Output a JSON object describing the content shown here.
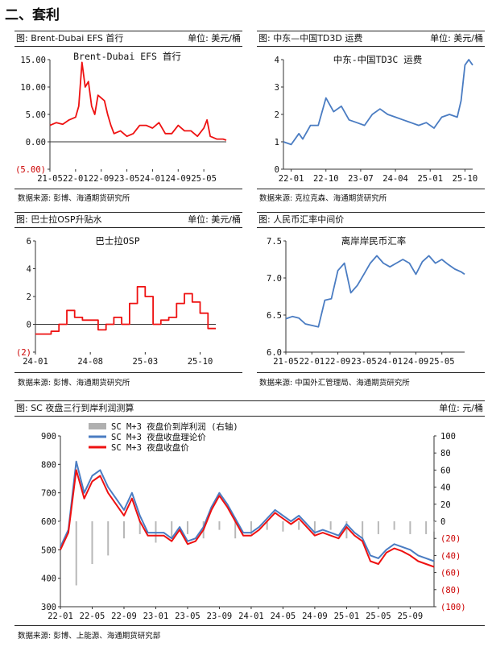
{
  "page": {
    "section_title": "二、套利"
  },
  "panels": {
    "p1": {
      "title": "图: Brent-Dubai EFS 首行",
      "unit": "单位: 美元/桶",
      "source": "数据来源: 彭博、海通期货研究所"
    },
    "p2": {
      "title": "图: 中东—中国TD3D 运费",
      "unit": "单位: 美元/桶",
      "source": "数据来源: 克拉克森、海通期货研究所"
    },
    "p3": {
      "title": "图: 巴士拉OSP升贴水",
      "unit": "单位: 美元/桶",
      "source": "数据来源: 彭博、海通期货研究所"
    },
    "p4": {
      "title": "图: 人民币汇率中间价",
      "unit": "",
      "source": "数据来源: 中国外汇管理局、海通期货研究所"
    },
    "p5": {
      "title": "图: SC 夜盘三行到岸利润测算",
      "unit": "单位: 元/桶",
      "source": "数据来源: 彭博、上能源、海通期货研究部"
    }
  },
  "chart_data": [
    {
      "id": "efs",
      "type": "line",
      "title": "Brent-Dubai EFS 首行",
      "ylim": [
        -5,
        15
      ],
      "yticks": [
        "15.00",
        "10.00",
        "5.00",
        "0.00",
        "(5.00)"
      ],
      "ytick_values": [
        15,
        10,
        5,
        0,
        -5
      ],
      "ytick_negative_color": "#cc0000",
      "xticks": [
        "21-05",
        "22-01",
        "22-09",
        "23-05",
        "24-01",
        "24-09",
        "25-05"
      ],
      "x_range": [
        "2021-05",
        "2025-12"
      ],
      "series": [
        {
          "color": "#ee1111",
          "x": [
            "2021-05",
            "2021-07",
            "2021-09",
            "2021-11",
            "2022-01",
            "2022-02",
            "2022-03",
            "2022-04",
            "2022-05",
            "2022-06",
            "2022-07",
            "2022-08",
            "2022-09",
            "2022-10",
            "2022-11",
            "2022-12",
            "2023-01",
            "2023-03",
            "2023-05",
            "2023-07",
            "2023-09",
            "2023-11",
            "2024-01",
            "2024-03",
            "2024-05",
            "2024-07",
            "2024-09",
            "2024-11",
            "2025-01",
            "2025-03",
            "2025-05",
            "2025-06",
            "2025-07",
            "2025-09",
            "2025-11",
            "2025-12"
          ],
          "values": [
            3.0,
            3.5,
            3.2,
            4.0,
            4.5,
            6.5,
            14.5,
            10.0,
            11.0,
            6.5,
            5.0,
            8.5,
            8.0,
            7.5,
            5.0,
            3.0,
            1.5,
            2.0,
            1.0,
            1.5,
            3.0,
            3.0,
            2.5,
            3.5,
            1.5,
            1.5,
            3.0,
            2.0,
            2.0,
            1.0,
            2.5,
            4.0,
            1.0,
            0.5,
            0.5,
            0.3
          ]
        }
      ]
    },
    {
      "id": "td3d",
      "type": "line",
      "title": "中东-中国TD3C 运费",
      "ylim": [
        0,
        4
      ],
      "yticks": [
        "4",
        "3",
        "2",
        "1",
        "0"
      ],
      "ytick_values": [
        4,
        3,
        2,
        1,
        0
      ],
      "xticks": [
        "22-01",
        "22-10",
        "23-07",
        "24-04",
        "25-01",
        "25-10"
      ],
      "x_range": [
        "2021-11",
        "2025-12"
      ],
      "series": [
        {
          "color": "#4a7cc2",
          "x": [
            "2021-11",
            "2022-01",
            "2022-03",
            "2022-04",
            "2022-06",
            "2022-08",
            "2022-10",
            "2022-12",
            "2023-02",
            "2023-04",
            "2023-06",
            "2023-08",
            "2023-10",
            "2023-12",
            "2024-02",
            "2024-04",
            "2024-06",
            "2024-08",
            "2024-10",
            "2024-12",
            "2025-02",
            "2025-04",
            "2025-06",
            "2025-08",
            "2025-09",
            "2025-10",
            "2025-11",
            "2025-12"
          ],
          "values": [
            1.0,
            0.9,
            1.3,
            1.1,
            1.6,
            1.6,
            2.6,
            2.1,
            2.3,
            1.8,
            1.7,
            1.6,
            2.0,
            2.2,
            2.0,
            1.9,
            1.8,
            1.7,
            1.6,
            1.7,
            1.5,
            1.9,
            2.0,
            1.9,
            2.5,
            3.8,
            4.0,
            3.8
          ]
        }
      ]
    },
    {
      "id": "osp",
      "type": "line",
      "title": "巴士拉OSP",
      "ylim": [
        -2,
        6
      ],
      "yticks": [
        "6",
        "4",
        "2",
        "0",
        "(2)"
      ],
      "ytick_values": [
        6,
        4,
        2,
        0,
        -2
      ],
      "ytick_negative_color": "#cc0000",
      "xticks": [
        "24-01",
        "24-08",
        "25-03",
        "25-10"
      ],
      "x_range": [
        "2024-01",
        "2025-12"
      ],
      "step": true,
      "series": [
        {
          "color": "#ee1111",
          "x": [
            "2024-01",
            "2024-02",
            "2024-03",
            "2024-04",
            "2024-05",
            "2024-06",
            "2024-07",
            "2024-08",
            "2024-09",
            "2024-10",
            "2024-11",
            "2024-12",
            "2025-01",
            "2025-02",
            "2025-03",
            "2025-04",
            "2025-05",
            "2025-06",
            "2025-07",
            "2025-08",
            "2025-09",
            "2025-10",
            "2025-11",
            "2025-12"
          ],
          "values": [
            -0.7,
            -0.7,
            -0.5,
            0.0,
            1.0,
            0.5,
            0.3,
            0.3,
            -0.4,
            0.0,
            0.5,
            0.0,
            1.5,
            2.7,
            2.0,
            0.0,
            0.3,
            0.5,
            1.5,
            2.2,
            1.6,
            0.8,
            -0.3,
            -0.3
          ]
        }
      ]
    },
    {
      "id": "cny",
      "type": "line",
      "title": "离岸岸民币汇率",
      "ylim": [
        6.0,
        7.5
      ],
      "yticks": [
        "7.5",
        "7.0",
        "6.5",
        "6.0"
      ],
      "ytick_values": [
        7.5,
        7.0,
        6.5,
        6.0
      ],
      "xticks": [
        "21-05",
        "22-01",
        "22-09",
        "23-05",
        "24-01",
        "24-09",
        "25-05"
      ],
      "x_range": [
        "2021-05",
        "2025-12"
      ],
      "series": [
        {
          "color": "#4a7cc2",
          "x": [
            "2021-05",
            "2021-07",
            "2021-09",
            "2021-11",
            "2022-01",
            "2022-03",
            "2022-05",
            "2022-07",
            "2022-09",
            "2022-11",
            "2023-01",
            "2023-03",
            "2023-05",
            "2023-07",
            "2023-09",
            "2023-11",
            "2024-01",
            "2024-03",
            "2024-05",
            "2024-07",
            "2024-09",
            "2024-11",
            "2025-01",
            "2025-03",
            "2025-05",
            "2025-07",
            "2025-09",
            "2025-11",
            "2025-12"
          ],
          "values": [
            6.45,
            6.48,
            6.46,
            6.38,
            6.36,
            6.34,
            6.7,
            6.72,
            7.1,
            7.2,
            6.8,
            6.9,
            7.05,
            7.2,
            7.3,
            7.2,
            7.15,
            7.2,
            7.25,
            7.2,
            7.05,
            7.22,
            7.3,
            7.2,
            7.25,
            7.18,
            7.12,
            7.08,
            7.05
          ]
        }
      ]
    },
    {
      "id": "sc",
      "type": "line",
      "title": "",
      "ylim": [
        300,
        900
      ],
      "y2lim": [
        -100,
        100
      ],
      "yticks": [
        "900",
        "800",
        "700",
        "600",
        "500",
        "400",
        "300"
      ],
      "ytick_values": [
        900,
        800,
        700,
        600,
        500,
        400,
        300
      ],
      "y2ticks": [
        "100",
        "80",
        "60",
        "40",
        "20",
        "0",
        "(20)",
        "(40)",
        "(60)",
        "(80)",
        "(100)"
      ],
      "y2tick_values": [
        100,
        80,
        60,
        40,
        20,
        0,
        -20,
        -40,
        -60,
        -80,
        -100
      ],
      "ytick_negative_color": "#cc0000",
      "xticks": [
        "22-01",
        "22-05",
        "22-09",
        "23-01",
        "23-05",
        "23-09",
        "24-01",
        "24-05",
        "24-09",
        "25-01",
        "25-05",
        "25-09"
      ],
      "x_range": [
        "2022-01",
        "2025-12"
      ],
      "legend": [
        "SC M+3 夜盘价到岸利润 (右轴)",
        "SC M+3 夜盘收盘理论价",
        "SC M+3 夜盘收盘价"
      ],
      "series": [
        {
          "name": "SC M+3 夜盘价到岸利润 (右轴)",
          "color": "#b0b0b0",
          "type": "bar",
          "axis": "right",
          "x": [
            "2022-01",
            "2022-03",
            "2022-05",
            "2022-07",
            "2022-09",
            "2022-11",
            "2023-01",
            "2023-03",
            "2023-05",
            "2023-07",
            "2023-09",
            "2023-11",
            "2024-01",
            "2024-03",
            "2024-05",
            "2024-07",
            "2024-09",
            "2024-11",
            "2025-01",
            "2025-03",
            "2025-05",
            "2025-07",
            "2025-09",
            "2025-11",
            "2025-12"
          ],
          "values": [
            -30,
            -75,
            -50,
            -40,
            -20,
            -15,
            -25,
            -20,
            -15,
            -20,
            -10,
            -20,
            -15,
            -10,
            -12,
            -10,
            -15,
            -10,
            -20,
            -20,
            -15,
            -10,
            -15,
            -15,
            -12
          ]
        },
        {
          "name": "SC M+3 夜盘收盘理论价",
          "color": "#4a7cc2",
          "axis": "left",
          "x": [
            "2022-01",
            "2022-02",
            "2022-03",
            "2022-04",
            "2022-05",
            "2022-06",
            "2022-07",
            "2022-08",
            "2022-09",
            "2022-10",
            "2022-11",
            "2022-12",
            "2023-01",
            "2023-02",
            "2023-03",
            "2023-04",
            "2023-05",
            "2023-06",
            "2023-07",
            "2023-08",
            "2023-09",
            "2023-10",
            "2023-11",
            "2023-12",
            "2024-01",
            "2024-02",
            "2024-03",
            "2024-04",
            "2024-05",
            "2024-06",
            "2024-07",
            "2024-09",
            "2024-10",
            "2024-11",
            "2024-12",
            "2025-01",
            "2025-02",
            "2025-03",
            "2025-04",
            "2025-05",
            "2025-06",
            "2025-07",
            "2025-08",
            "2025-09",
            "2025-10",
            "2025-11",
            "2025-12"
          ],
          "values": [
            510,
            570,
            810,
            700,
            760,
            780,
            720,
            680,
            640,
            700,
            620,
            560,
            560,
            560,
            540,
            580,
            530,
            540,
            580,
            650,
            700,
            660,
            610,
            560,
            560,
            580,
            610,
            640,
            620,
            600,
            620,
            560,
            570,
            560,
            550,
            590,
            560,
            540,
            480,
            470,
            500,
            520,
            510,
            500,
            480,
            470,
            460
          ]
        },
        {
          "name": "SC M+3 夜盘收盘价",
          "color": "#ee1111",
          "axis": "left",
          "x": [
            "2022-01",
            "2022-02",
            "2022-03",
            "2022-04",
            "2022-05",
            "2022-06",
            "2022-07",
            "2022-08",
            "2022-09",
            "2022-10",
            "2022-11",
            "2022-12",
            "2023-01",
            "2023-02",
            "2023-03",
            "2023-04",
            "2023-05",
            "2023-06",
            "2023-07",
            "2023-08",
            "2023-09",
            "2023-10",
            "2023-11",
            "2023-12",
            "2024-01",
            "2024-02",
            "2024-03",
            "2024-04",
            "2024-05",
            "2024-06",
            "2024-07",
            "2024-09",
            "2024-10",
            "2024-11",
            "2024-12",
            "2025-01",
            "2025-02",
            "2025-03",
            "2025-04",
            "2025-05",
            "2025-06",
            "2025-07",
            "2025-08",
            "2025-09",
            "2025-10",
            "2025-11",
            "2025-12"
          ],
          "values": [
            500,
            560,
            780,
            680,
            740,
            760,
            700,
            660,
            620,
            680,
            600,
            550,
            550,
            550,
            530,
            570,
            520,
            530,
            570,
            640,
            690,
            650,
            600,
            550,
            550,
            570,
            600,
            630,
            610,
            590,
            610,
            550,
            560,
            550,
            540,
            580,
            550,
            530,
            460,
            450,
            490,
            505,
            495,
            480,
            460,
            450,
            440
          ]
        }
      ]
    }
  ]
}
